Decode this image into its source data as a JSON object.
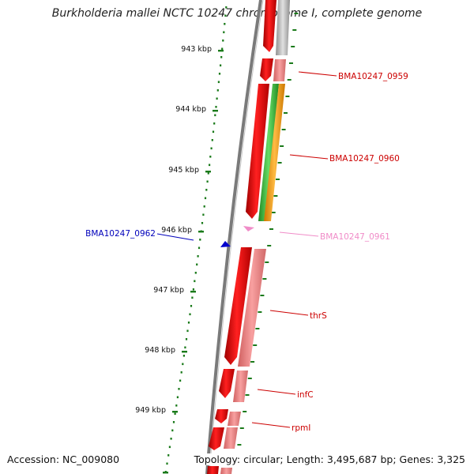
{
  "title": "Burkholderia mallei NCTC 10247 chromosome I, complete genome",
  "accession": "Accession: NC_009080",
  "topology": "Topology: circular; Length: 3,495,687 bp; Genes: 3,325",
  "scale_labels": [
    "943 kbp",
    "944 kbp",
    "945 kbp",
    "946 kbp",
    "947 kbp",
    "948 kbp",
    "949 kbp"
  ],
  "gene_labels": [
    {
      "name": "BMA10247_0959",
      "color": "#cc0000"
    },
    {
      "name": "BMA10247_0960",
      "color": "#cc0000"
    },
    {
      "name": "BMA10247_0961",
      "color": "#f08cc8"
    },
    {
      "name": "BMA10247_0962",
      "color": "#0000bb"
    },
    {
      "name": "thrS",
      "color": "#cc0000"
    },
    {
      "name": "infC",
      "color": "#cc0000"
    },
    {
      "name": "rpmI",
      "color": "#cc0000"
    }
  ],
  "colors": {
    "gene_red": "#e60000",
    "gene_pink": "#f08080",
    "cds_green": "#33bb33",
    "cds_orange": "#ff9900",
    "gray": "#a0a0a0",
    "backbone": "#808080",
    "tick_green": "#1a7a1a",
    "blue": "#0000cc"
  }
}
